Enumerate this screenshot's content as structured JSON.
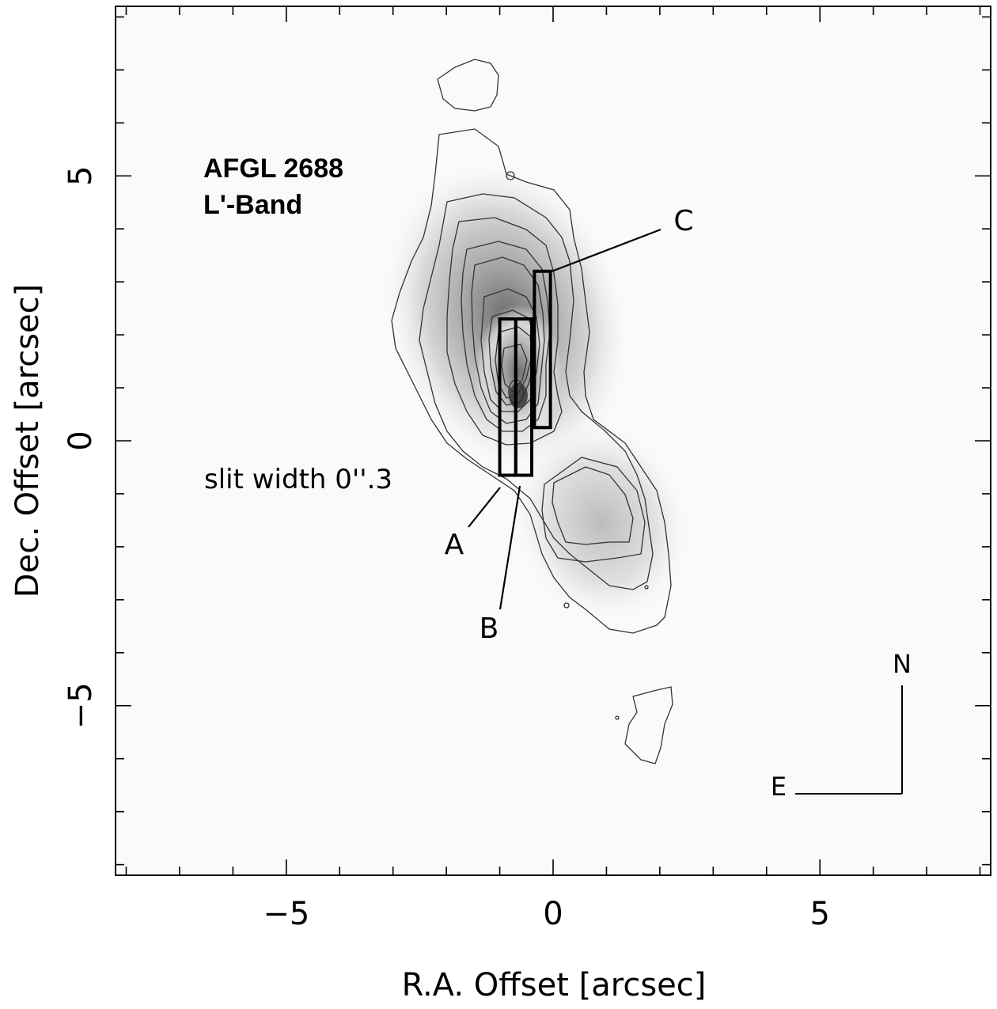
{
  "chart_data": {
    "type": "image-contour",
    "title_lines": [
      "AFGL 2688",
      "L'-Band"
    ],
    "xlabel": "R.A. Offset [arcsec]",
    "ylabel": "Dec. Offset [arcsec]",
    "xlim": [
      -8.2,
      8.2
    ],
    "ylim": [
      -8.2,
      8.2
    ],
    "xticks": [
      {
        "v": -5,
        "label": "−5"
      },
      {
        "v": 0,
        "label": "0"
      },
      {
        "v": 5,
        "label": "5"
      }
    ],
    "yticks": [
      {
        "v": 5,
        "label": "5"
      },
      {
        "v": 0,
        "label": "0"
      },
      {
        "v": -5,
        "label": "−5"
      }
    ],
    "annotation": "slit width 0''.3",
    "slits": [
      {
        "label": "A",
        "x_range": [
          -1.0,
          -0.7
        ],
        "y_range": [
          -0.65,
          2.3
        ]
      },
      {
        "label": "B",
        "x_range": [
          -0.7,
          -0.4
        ],
        "y_range": [
          -0.65,
          2.3
        ]
      },
      {
        "label": "C",
        "x_range": [
          -0.35,
          -0.05
        ],
        "y_range": [
          0.25,
          3.2
        ]
      }
    ],
    "compass": {
      "north": "N",
      "east": "E"
    }
  }
}
